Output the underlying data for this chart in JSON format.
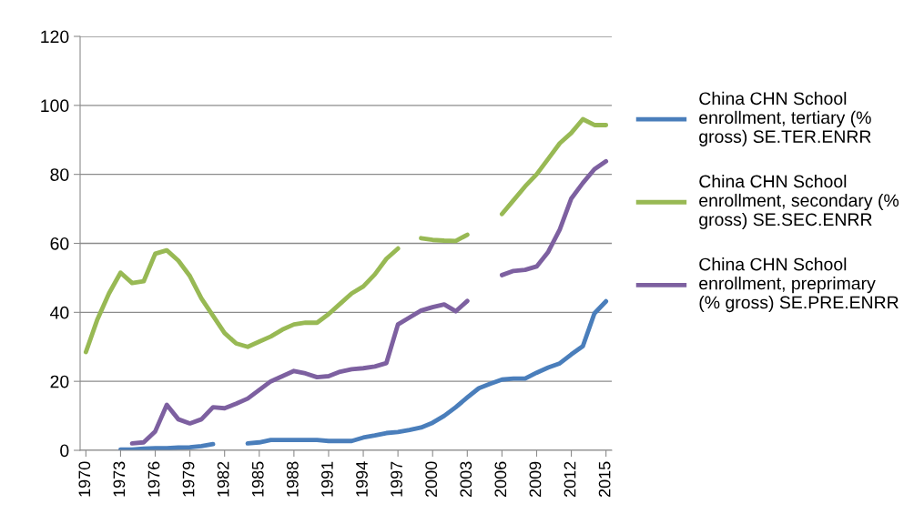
{
  "chart_data": {
    "type": "line",
    "categories": [
      "1970",
      null,
      null,
      "1973",
      null,
      null,
      "1976",
      null,
      null,
      "1979",
      null,
      null,
      "1982",
      null,
      null,
      "1985",
      null,
      null,
      "1988",
      null,
      null,
      "1991",
      null,
      null,
      "1994",
      null,
      null,
      "1997",
      null,
      null,
      "2000",
      null,
      null,
      "2003",
      null,
      null,
      "2006",
      null,
      null,
      "2009",
      null,
      null,
      "2012",
      null,
      null,
      "2015"
    ],
    "series": [
      {
        "name": "China CHN School enrollment, tertiary (% gross) SE.TER.ENRR",
        "color": "#4a7ebb",
        "values": [
          null,
          null,
          null,
          0.2,
          0.2,
          0.5,
          0.6,
          0.6,
          0.8,
          0.9,
          1.2,
          1.8,
          null,
          null,
          2,
          2.3,
          3,
          3,
          3,
          3,
          3,
          2.7,
          2.7,
          2.7,
          3.7,
          4.3,
          5,
          5.3,
          5.9,
          6.6,
          8,
          10,
          12.5,
          15.3,
          18,
          19.3,
          20.5,
          20.8,
          20.8,
          22.5,
          24,
          25.2,
          27.8,
          30.2,
          39.7,
          43.2
        ]
      },
      {
        "name": "China CHN School enrollment, secondary (% gross) SE.SEC.ENRR",
        "color": "#98b954",
        "values": [
          28.5,
          38,
          45.5,
          51.5,
          48.5,
          49,
          57,
          58,
          55,
          50.5,
          44,
          39,
          34,
          31,
          30,
          31.5,
          33,
          35,
          36.5,
          37,
          37,
          39.5,
          42.5,
          45.5,
          47.5,
          51,
          55.5,
          58.5,
          null,
          61.5,
          61,
          60.8,
          60.7,
          62.5,
          null,
          null,
          68.5,
          72.5,
          76.5,
          80,
          84.5,
          89,
          92,
          96,
          94.3,
          94.3
        ]
      },
      {
        "name": "China CHN School enrollment, preprimary (% gross) SE.PRE.ENRR",
        "color": "#7d60a0",
        "values": [
          null,
          null,
          null,
          null,
          2,
          2.3,
          5.5,
          13.2,
          9,
          7.8,
          9,
          12.5,
          12.2,
          13.5,
          15,
          17.5,
          20,
          21.5,
          23,
          22.3,
          21.2,
          21.5,
          22.8,
          23.5,
          23.8,
          24.3,
          25.3,
          36.5,
          38.5,
          40.5,
          41.5,
          42.3,
          40.3,
          43.3,
          null,
          null,
          50.8,
          52,
          52.3,
          53.3,
          57.5,
          64,
          73,
          77.5,
          81.5,
          83.8
        ]
      }
    ],
    "ylim": [
      0,
      120
    ],
    "yticks": [
      0,
      20,
      40,
      60,
      80,
      100,
      120
    ],
    "grid": "y",
    "legend": "right",
    "marker": "none",
    "line_style": "solid"
  }
}
